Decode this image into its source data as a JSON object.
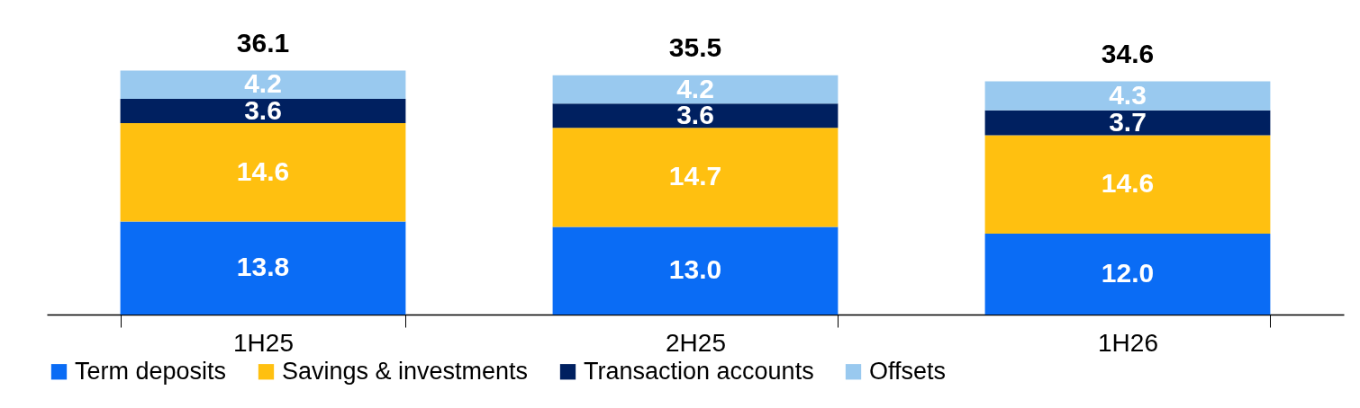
{
  "chart_data": {
    "type": "bar",
    "stacked": true,
    "categories": [
      "1H25",
      "2H25",
      "1H26"
    ],
    "series": [
      {
        "name": "Term deposits",
        "color": "#0a6cf5",
        "values": [
          13.8,
          13.0,
          12.0
        ],
        "value_labels": [
          "13.8",
          "13.0",
          "12.0"
        ]
      },
      {
        "name": "Savings & investments",
        "color": "#ffc010",
        "values": [
          14.6,
          14.7,
          14.6
        ],
        "value_labels": [
          "14.6",
          "14.7",
          "14.6"
        ]
      },
      {
        "name": "Transaction accounts",
        "color": "#002060",
        "values": [
          3.6,
          3.6,
          3.7
        ],
        "value_labels": [
          "3.6",
          "3.6",
          "3.7"
        ]
      },
      {
        "name": "Offsets",
        "color": "#99c9ef",
        "values": [
          4.2,
          4.2,
          4.3
        ],
        "value_labels": [
          "4.2",
          "4.2",
          "4.3"
        ]
      }
    ],
    "totals": [
      "36.1",
      "35.5",
      "34.6"
    ],
    "legend": "bottom",
    "grid": false
  }
}
